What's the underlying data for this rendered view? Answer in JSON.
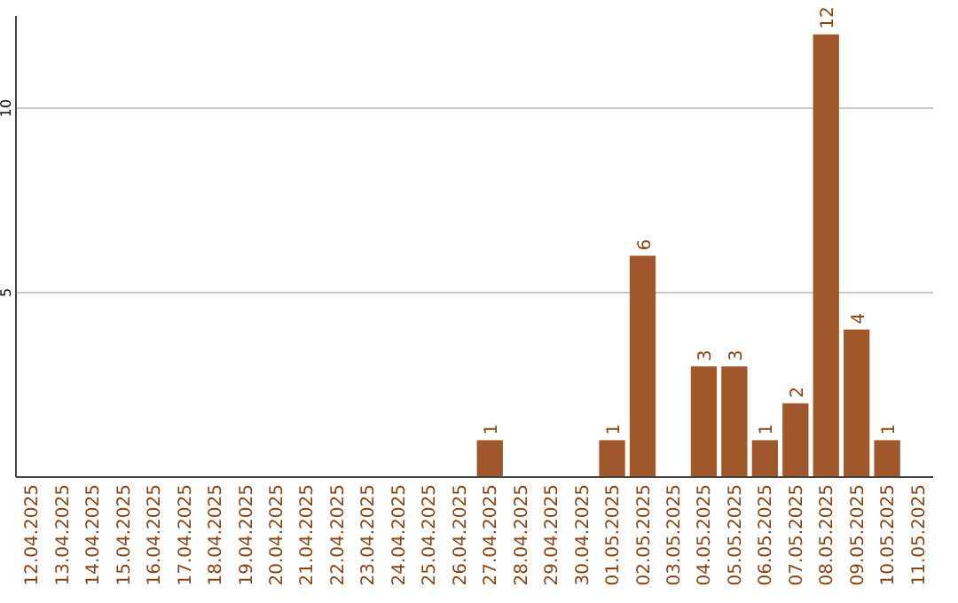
{
  "chart_data": {
    "type": "bar",
    "categories": [
      "12.04.2025",
      "13.04.2025",
      "14.04.2025",
      "15.04.2025",
      "16.04.2025",
      "17.04.2025",
      "18.04.2025",
      "19.04.2025",
      "20.04.2025",
      "21.04.2025",
      "22.04.2025",
      "23.04.2025",
      "24.04.2025",
      "25.04.2025",
      "26.04.2025",
      "27.04.2025",
      "28.04.2025",
      "29.04.2025",
      "30.04.2025",
      "01.05.2025",
      "02.05.2025",
      "03.05.2025",
      "04.05.2025",
      "05.05.2025",
      "06.05.2025",
      "07.05.2025",
      "08.05.2025",
      "09.05.2025",
      "10.05.2025",
      "11.05.2025"
    ],
    "values": [
      0,
      0,
      0,
      0,
      0,
      0,
      0,
      0,
      0,
      0,
      0,
      0,
      0,
      0,
      0,
      1,
      0,
      0,
      0,
      1,
      6,
      0,
      3,
      3,
      1,
      2,
      12,
      4,
      1,
      0
    ],
    "value_labels": [
      null,
      null,
      null,
      null,
      null,
      null,
      null,
      null,
      null,
      null,
      null,
      null,
      null,
      null,
      null,
      "1",
      null,
      null,
      null,
      "1",
      "6",
      null,
      "3",
      "3",
      "1",
      "2",
      "12",
      "4",
      "1",
      null
    ],
    "color": "#a0582a",
    "ylim": [
      0,
      12.5
    ],
    "yticks": [
      5,
      10
    ],
    "grid": "y"
  }
}
